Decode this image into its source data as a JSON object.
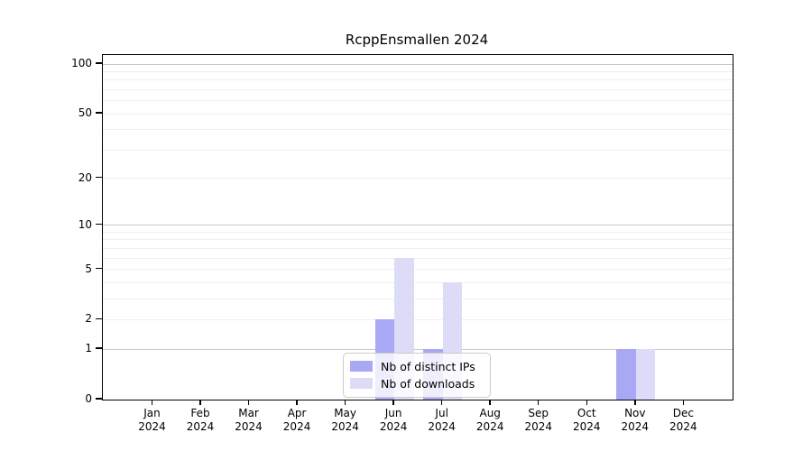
{
  "title": "RcppEnsmallen 2024",
  "chart_data": {
    "type": "bar",
    "title": "RcppEnsmallen 2024",
    "categories": [
      "Jan 2024",
      "Feb 2024",
      "Mar 2024",
      "Apr 2024",
      "May 2024",
      "Jun 2024",
      "Jul 2024",
      "Aug 2024",
      "Sep 2024",
      "Oct 2024",
      "Nov 2024",
      "Dec 2024"
    ],
    "series": [
      {
        "name": "Nb of distinct IPs",
        "color": "#a8a8f4",
        "values": [
          0,
          0,
          0,
          0,
          0,
          2,
          1,
          0,
          0,
          0,
          1,
          0
        ]
      },
      {
        "name": "Nb of downloads",
        "color": "#dcdcf8",
        "values": [
          0,
          0,
          0,
          0,
          0,
          6,
          4,
          0,
          0,
          0,
          1,
          0
        ]
      }
    ],
    "xlabel": "",
    "ylabel": "",
    "y_scale": "log1p",
    "ylim": [
      0,
      113
    ],
    "y_ticks": [
      0,
      1,
      2,
      5,
      10,
      20,
      50,
      100
    ],
    "major_gridlines": [
      1,
      10,
      100
    ],
    "minor_gridlines": [
      2,
      3,
      4,
      5,
      6,
      7,
      8,
      9,
      20,
      30,
      40,
      50,
      60,
      70,
      80,
      90
    ],
    "grid": "horizontal",
    "legend_position": "bottom-center"
  },
  "colors": {
    "background": "#ffffff",
    "spine": "#000000",
    "major_grid": "#c8c8c8",
    "minor_grid": "#efefef",
    "distinct_ips_bar": "#a8a8f4",
    "downloads_bar": "#dcdcf8",
    "legend_border": "#cccccc"
  }
}
